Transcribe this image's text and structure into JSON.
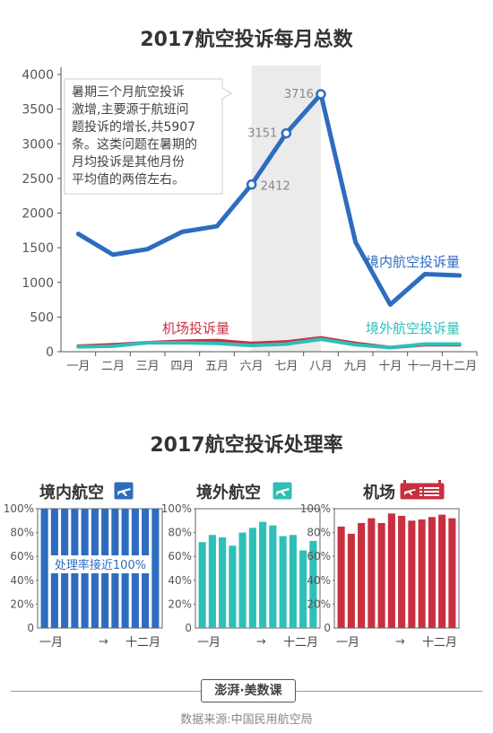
{
  "footer": {
    "logo": "澎湃·美数课",
    "source": "数据来源:中国民用航空局"
  },
  "colors": {
    "domestic": "#2e6cc0",
    "foreign": "#2ebfb8",
    "airport": "#c8303f",
    "highlight_band": "#ebebeb"
  },
  "chart_data": [
    {
      "type": "line",
      "title": "2017航空投诉每月总数",
      "categories": [
        "一月",
        "二月",
        "三月",
        "四月",
        "五月",
        "六月",
        "七月",
        "八月",
        "九月",
        "十月",
        "十一月",
        "十二月"
      ],
      "ylim": [
        0,
        4000
      ],
      "yticks": [
        0,
        500,
        1000,
        1500,
        2000,
        2500,
        3000,
        3500,
        4000
      ],
      "grid": false,
      "series": [
        {
          "name": "境内航空投诉量",
          "values": [
            1700,
            1400,
            1480,
            1730,
            1810,
            2412,
            3151,
            3716,
            1580,
            680,
            1120,
            1100
          ]
        },
        {
          "name": "机场投诉量",
          "values": [
            80,
            100,
            130,
            150,
            160,
            120,
            140,
            200,
            120,
            60,
            100,
            100
          ]
        },
        {
          "name": "境外航空投诉量",
          "values": [
            70,
            80,
            130,
            130,
            120,
            90,
            110,
            180,
            100,
            60,
            110,
            110
          ]
        }
      ],
      "data_labels": [
        "2412",
        "3151",
        "3716"
      ],
      "highlight_months": [
        "六月",
        "七月",
        "八月"
      ],
      "annotation": "暑期三个月航空投诉激增,主要源于航班问题投诉的增长,共5907条。这类问题在暑期的月均投诉是其他月份平均值的两倍左右。",
      "annotation_lines": [
        "暑期三个月航空投诉",
        "激增,主要源于航班问",
        "题投诉的增长,共5907",
        "条。这类问题在暑期的",
        "月均投诉是其他月份",
        "平均值的两倍左右。"
      ]
    },
    {
      "type": "bar",
      "title": "2017航空投诉处理率",
      "panel_title": "境内航空",
      "icon": "airplane-icon",
      "ylim": [
        0,
        100
      ],
      "yticks": [
        "0",
        "20%",
        "40%",
        "60%",
        "80%",
        "100%"
      ],
      "x_start": "一月",
      "x_end": "十二月",
      "x_arrow": "→",
      "values": [
        100,
        100,
        100,
        100,
        100,
        100,
        100,
        100,
        100,
        100,
        100,
        100
      ],
      "annotation": "处理率接近100%"
    },
    {
      "type": "bar",
      "panel_title": "境外航空",
      "icon": "airplane-icon",
      "ylim": [
        0,
        100
      ],
      "yticks": [
        "0",
        "20%",
        "40%",
        "60%",
        "80%",
        "100%"
      ],
      "x_start": "一月",
      "x_end": "十二月",
      "x_arrow": "→",
      "values": [
        72,
        78,
        76,
        69,
        80,
        84,
        89,
        86,
        77,
        78,
        65,
        73
      ]
    },
    {
      "type": "bar",
      "panel_title": "机场",
      "icon": "airport-board-icon",
      "ylim": [
        0,
        100
      ],
      "yticks": [
        "0",
        "20%",
        "40%",
        "60%",
        "80%",
        "100%"
      ],
      "x_start": "一月",
      "x_end": "十二月",
      "x_arrow": "→",
      "values": [
        85,
        79,
        88,
        92,
        88,
        96,
        94,
        90,
        91,
        93,
        95,
        92
      ]
    }
  ]
}
